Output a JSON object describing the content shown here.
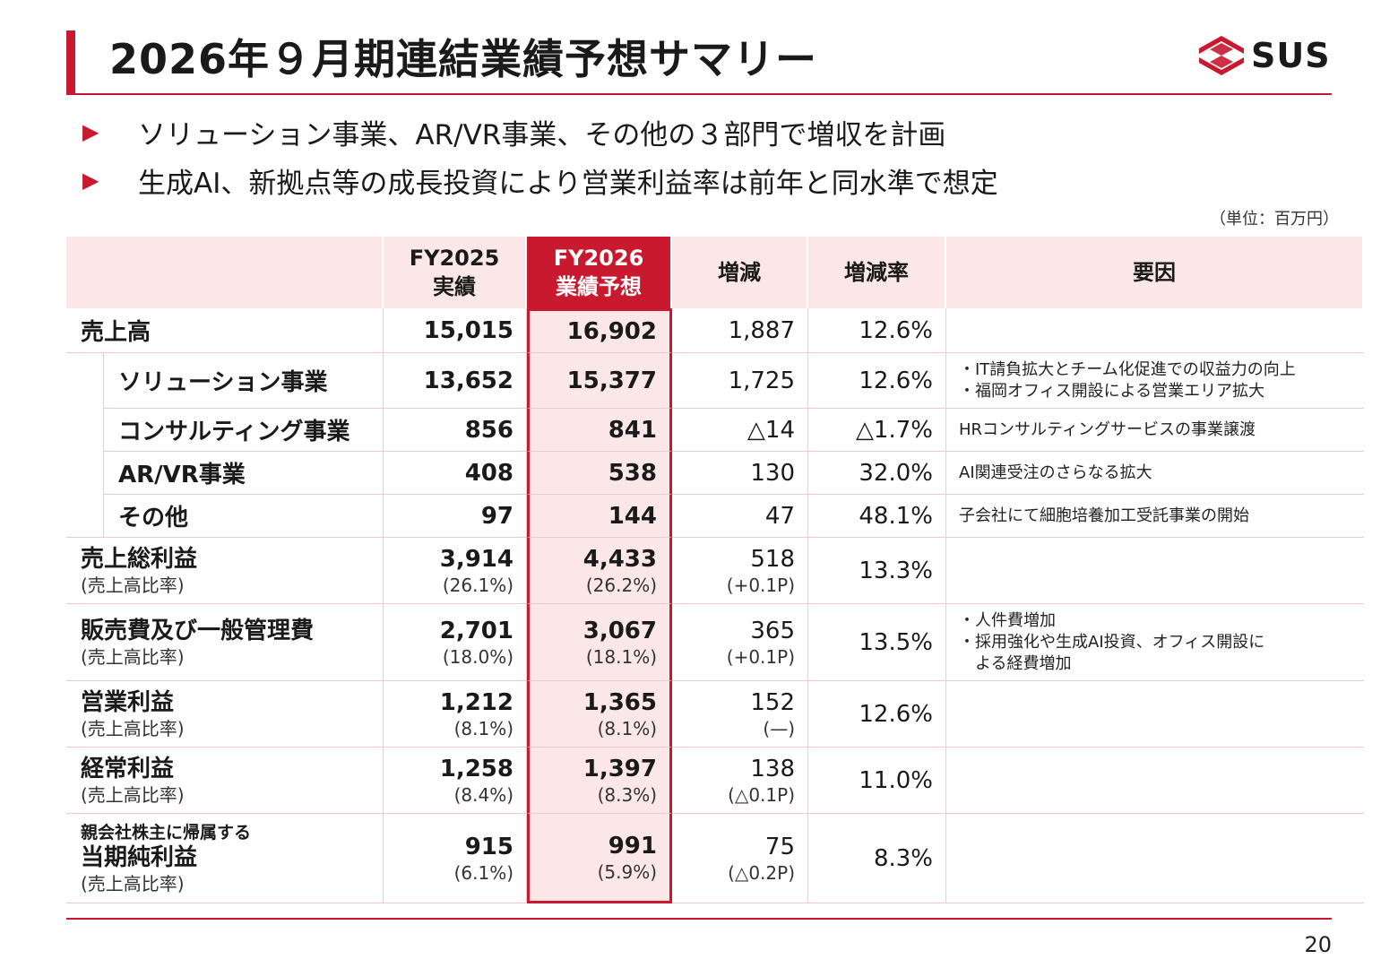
{
  "title": "2026年９月期連結業績予想サマリー",
  "logo": {
    "text": "SUS",
    "icon": "sus-logo-icon",
    "color": "#c8192e"
  },
  "bullets": [
    "ソリューション事業、AR/VR事業、その他の３部門で増収を計画",
    "生成AI、新拠点等の成長投資により営業利益率は前年と同水準で想定"
  ],
  "bullet_marker": "▶",
  "unit": "（単位：百万円）",
  "table": {
    "headers": {
      "fy2025_top": "FY2025",
      "fy2025_bottom": "実績",
      "fy2026_top": "FY2026",
      "fy2026_bottom": "業績予想",
      "change": "増減",
      "rate": "増減率",
      "reason": "要因"
    },
    "rows": [
      {
        "label": "売上高",
        "fy2025": "15,015",
        "fy2026": "16,902",
        "change": "1,887",
        "rate": "12.6%"
      },
      {
        "label": "ソリューション事業",
        "fy2025": "13,652",
        "fy2026": "15,377",
        "change": "1,725",
        "rate": "12.6%",
        "reason1": "・IT請負拡大とチーム化促進での収益力の向上",
        "reason2": "・福岡オフィス開設による営業エリア拡大"
      },
      {
        "label": "コンサルティング事業",
        "fy2025": "856",
        "fy2026": "841",
        "change": "△14",
        "rate": "△1.7%",
        "reason1": "HRコンサルティングサービスの事業譲渡"
      },
      {
        "label": "AR/VR事業",
        "fy2025": "408",
        "fy2026": "538",
        "change": "130",
        "rate": "32.0%",
        "reason1": "AI関連受注のさらなる拡大"
      },
      {
        "label": "その他",
        "fy2025": "97",
        "fy2026": "144",
        "change": "47",
        "rate": "48.1%",
        "reason1": "子会社にて細胞培養加工受託事業の開始"
      },
      {
        "label": "売上総利益",
        "sub": "(売上高比率)",
        "fy2025": "3,914",
        "fy2025_sub": "(26.1%)",
        "fy2026": "4,433",
        "fy2026_sub": "(26.2%)",
        "change": "518",
        "change_sub": "(+0.1P)",
        "rate": "13.3%"
      },
      {
        "label": "販売費及び一般管理費",
        "sub": "(売上高比率)",
        "fy2025": "2,701",
        "fy2025_sub": "(18.0%)",
        "fy2026": "3,067",
        "fy2026_sub": "(18.1%)",
        "change": "365",
        "change_sub": "(+0.1P)",
        "rate": "13.5%",
        "reason1": "・人件費増加",
        "reason2": "・採用強化や生成AI投資、オフィス開設に",
        "reason3": "　よる経費増加"
      },
      {
        "label": "営業利益",
        "sub": "(売上高比率)",
        "fy2025": "1,212",
        "fy2025_sub": "(8.1%)",
        "fy2026": "1,365",
        "fy2026_sub": "(8.1%)",
        "change": "152",
        "change_sub": "(—)",
        "rate": "12.6%"
      },
      {
        "label": "経常利益",
        "sub": "(売上高比率)",
        "fy2025": "1,258",
        "fy2025_sub": "(8.4%)",
        "fy2026": "1,397",
        "fy2026_sub": "(8.3%)",
        "change": "138",
        "change_sub": "(△0.1P)",
        "rate": "11.0%"
      },
      {
        "label_pre": "親会社株主に帰属する",
        "label": "当期純利益",
        "sub": "(売上高比率)",
        "fy2025": "915",
        "fy2025_sub": "(6.1%)",
        "fy2026": "991",
        "fy2026_sub": "(5.9%)",
        "change": "75",
        "change_sub": "(△0.2P)",
        "rate": "8.3%"
      }
    ]
  },
  "page_number": "20"
}
